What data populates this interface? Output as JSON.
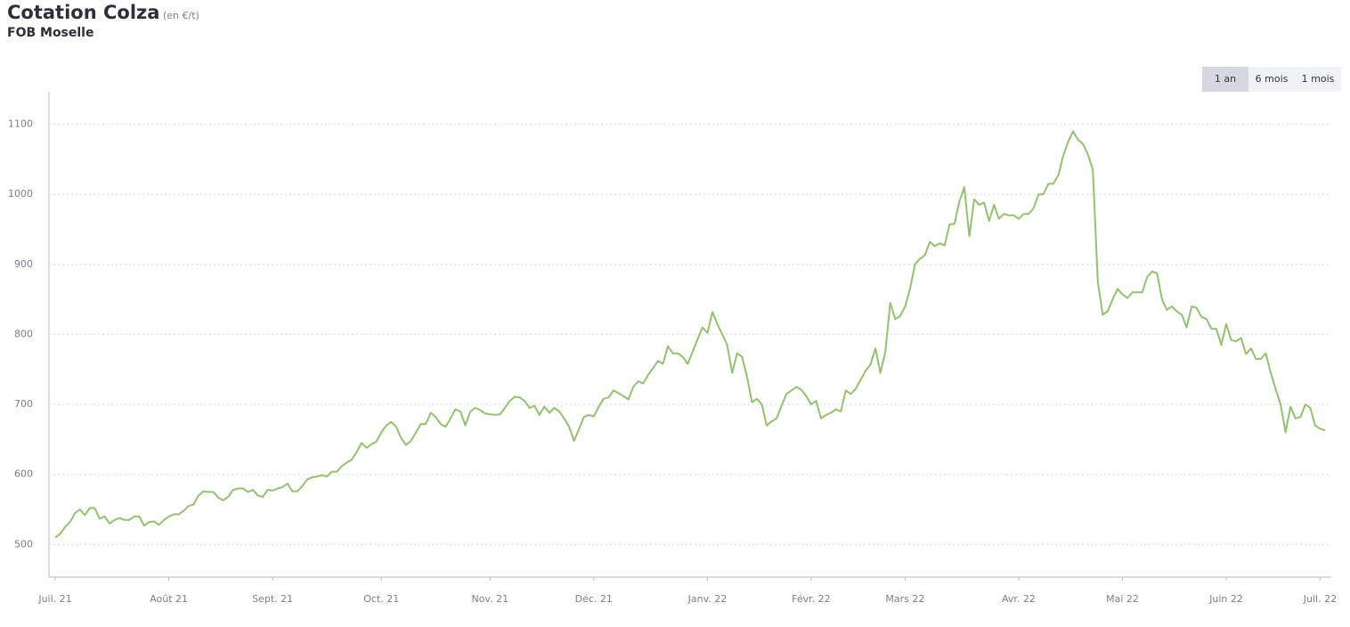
{
  "chart_data": {
    "type": "line",
    "title": "Cotation Colza",
    "unit": "(en €/t)",
    "subtitle": "FOB Moselle",
    "controls": [
      "1 an",
      "6 mois",
      "1 mois"
    ],
    "active_control": 0,
    "series": [
      {
        "color": "#93c26f",
        "values": [
          510,
          515,
          525,
          532,
          545,
          550,
          542,
          552,
          552,
          537,
          540,
          530,
          535,
          538,
          535,
          535,
          540,
          540,
          527,
          532,
          533,
          528,
          535,
          540,
          543,
          543,
          548,
          555,
          557,
          570,
          576,
          575,
          575,
          567,
          563,
          568,
          578,
          580,
          580,
          575,
          578,
          570,
          568,
          578,
          577,
          580,
          582,
          587,
          576,
          576,
          583,
          593,
          596,
          597,
          599,
          597,
          604,
          604,
          612,
          617,
          621,
          632,
          645,
          638,
          643,
          647,
          660,
          670,
          675,
          668,
          652,
          642,
          648,
          660,
          672,
          672,
          688,
          682,
          672,
          668,
          680,
          693,
          690,
          670,
          690,
          695,
          692,
          687,
          686,
          685,
          686,
          695,
          705,
          711,
          710,
          705,
          695,
          698,
          685,
          697,
          688,
          695,
          690,
          680,
          668,
          648,
          665,
          682,
          685,
          683,
          697,
          708,
          710,
          720,
          716,
          712,
          707,
          725,
          733,
          730,
          742,
          752,
          762,
          758,
          783,
          773,
          773,
          768,
          758,
          775,
          793,
          810,
          802,
          832,
          815,
          800,
          785,
          745,
          773,
          768,
          740,
          703,
          708,
          700,
          670,
          676,
          680,
          698,
          715,
          720,
          725,
          721,
          712,
          700,
          705,
          680,
          685,
          688,
          693,
          690,
          720,
          715,
          722,
          735,
          748,
          757,
          780,
          745,
          775,
          845,
          822,
          826,
          840,
          865,
          900,
          908,
          913,
          932,
          926,
          930,
          927,
          957,
          958,
          990,
          1010,
          940,
          993,
          985,
          988,
          962,
          985,
          965,
          972,
          970,
          970,
          965,
          972,
          972,
          980,
          1000,
          1000,
          1015,
          1015,
          1027,
          1055,
          1075,
          1090,
          1078,
          1072,
          1057,
          1035,
          875,
          828,
          833,
          850,
          865,
          857,
          852,
          860,
          860,
          860,
          882,
          890,
          887,
          850,
          835,
          840,
          833,
          828,
          810,
          840,
          838,
          825,
          822,
          808,
          808,
          785,
          815,
          792,
          790,
          795,
          772,
          780,
          765,
          765,
          773,
          745,
          722,
          700,
          660,
          697,
          680,
          682,
          700,
          695,
          670,
          665,
          663
        ]
      }
    ],
    "xlim": [
      0,
      257
    ],
    "xticks": [
      {
        "value": 0,
        "label": "Juil. 21"
      },
      {
        "value": 23,
        "label": "Août 21"
      },
      {
        "value": 44,
        "label": "Sept. 21"
      },
      {
        "value": 66,
        "label": "Oct. 21"
      },
      {
        "value": 88,
        "label": "Nov. 21"
      },
      {
        "value": 109,
        "label": "Déc. 21"
      },
      {
        "value": 132,
        "label": "Janv. 22"
      },
      {
        "value": 153,
        "label": "Févr. 22"
      },
      {
        "value": 172,
        "label": "Mars 22"
      },
      {
        "value": 195,
        "label": "Avr. 22"
      },
      {
        "value": 216,
        "label": "Mai 22"
      },
      {
        "value": 237,
        "label": "Juin 22"
      },
      {
        "value": 256,
        "label": "Juil. 22"
      }
    ],
    "ylim": [
      453.4,
      1146.5
    ],
    "yticks": [
      500,
      600,
      700,
      800,
      900,
      1000,
      1100
    ],
    "grid": true
  }
}
